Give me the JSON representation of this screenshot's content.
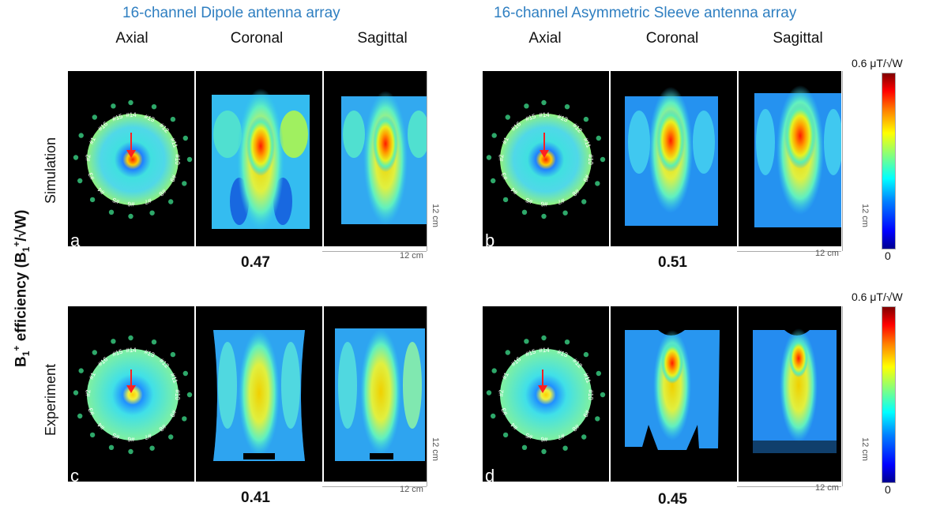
{
  "titles": {
    "left_array": "16-channel Dipole antenna array",
    "right_array": "16-channel Asymmetric Sleeve antenna array"
  },
  "views": {
    "axial": "Axial",
    "coronal": "Coronal",
    "sagittal": "Sagittal"
  },
  "rows": {
    "simulation": "Simulation",
    "experiment": "Experiment"
  },
  "y_axis_title": {
    "prefix": "B",
    "sub1": "1",
    "sup": "+",
    "middle": " efficiency (B",
    "sub2": "1",
    "sup2": "+",
    "slash": "/√W)"
  },
  "panels": {
    "a": {
      "letter": "a",
      "value": "0.47"
    },
    "b": {
      "letter": "b",
      "value": "0.51"
    },
    "c": {
      "letter": "c",
      "value": "0.41"
    },
    "d": {
      "letter": "d",
      "value": "0.45"
    }
  },
  "scale": {
    "horizontal": "12 cm",
    "vertical": "12 cm"
  },
  "colorbar": {
    "max_label": "0.6 μT/√W",
    "min_label": "0"
  },
  "channels": [
    "#1",
    "#2",
    "#3",
    "#4",
    "#5",
    "#6",
    "#7",
    "#8",
    "#9",
    "#10",
    "#11",
    "#12",
    "#13",
    "#14",
    "#15",
    "#16"
  ],
  "colors": {
    "title_blue": "#2f7fc1",
    "dot_green": "#2ea86a",
    "arrow_red": "#ff2020"
  }
}
